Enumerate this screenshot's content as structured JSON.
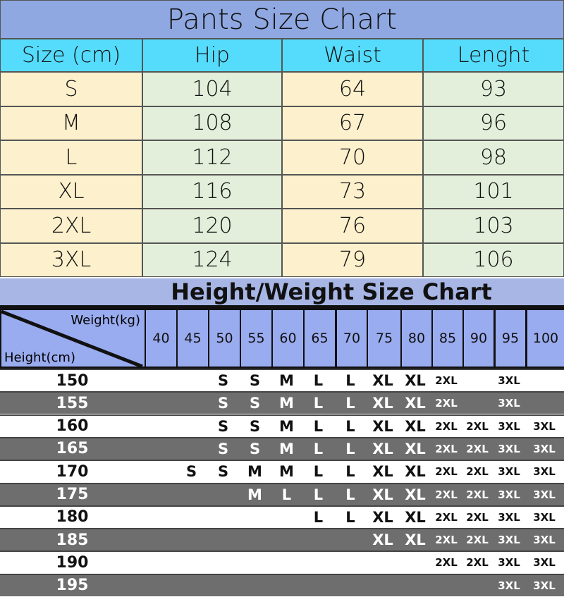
{
  "pants": {
    "title": "Pants Size Chart",
    "headers": [
      "Size  (cm)",
      "Hip",
      "Waist",
      "Lenght"
    ],
    "rows": [
      [
        "S",
        "104",
        "64",
        "93"
      ],
      [
        "M",
        "108",
        "67",
        "96"
      ],
      [
        "L",
        "112",
        "70",
        "98"
      ],
      [
        "XL",
        "116",
        "73",
        "101"
      ],
      [
        "2XL",
        "120",
        "76",
        "103"
      ],
      [
        "3XL",
        "124",
        "79",
        "106"
      ]
    ]
  },
  "height_weight": {
    "title": "Height/Weight Size Chart",
    "weight_label": "Weight(kg)",
    "height_label": "Height(cm)",
    "weights": [
      "40",
      "45",
      "50",
      "55",
      "60",
      "65",
      "70",
      "75",
      "80",
      "85",
      "90",
      "95",
      "100"
    ],
    "rows": [
      {
        "height": "150",
        "sizes": [
          "",
          "",
          "S",
          "S",
          "M",
          "L",
          "L",
          "XL",
          "XL",
          "2XL",
          "",
          "3XL",
          ""
        ]
      },
      {
        "height": "155",
        "sizes": [
          "",
          "",
          "S",
          "S",
          "M",
          "L",
          "L",
          "XL",
          "XL",
          "2XL",
          "",
          "3XL",
          ""
        ]
      },
      {
        "height": "160",
        "sizes": [
          "",
          "",
          "S",
          "S",
          "M",
          "L",
          "L",
          "XL",
          "XL",
          "2XL",
          "2XL",
          "3XL",
          "3XL"
        ]
      },
      {
        "height": "165",
        "sizes": [
          "",
          "",
          "S",
          "S",
          "M",
          "L",
          "L",
          "XL",
          "XL",
          "2XL",
          "2XL",
          "3XL",
          "3XL"
        ]
      },
      {
        "height": "170",
        "sizes": [
          "",
          "S",
          "S",
          "M",
          "M",
          "L",
          "L",
          "XL",
          "XL",
          "2XL",
          "2XL",
          "3XL",
          "3XL"
        ]
      },
      {
        "height": "175",
        "sizes": [
          "",
          "",
          "",
          "M",
          "L",
          "L",
          "L",
          "XL",
          "XL",
          "2XL",
          "2XL",
          "3XL",
          "3XL"
        ]
      },
      {
        "height": "180",
        "sizes": [
          "",
          "",
          "",
          "",
          "",
          "L",
          "L",
          "XL",
          "XL",
          "2XL",
          "2XL",
          "3XL",
          "3XL"
        ]
      },
      {
        "height": "185",
        "sizes": [
          "",
          "",
          "",
          "",
          "",
          "",
          "",
          "XL",
          "XL",
          "2XL",
          "2XL",
          "3XL",
          "3XL"
        ]
      },
      {
        "height": "190",
        "sizes": [
          "",
          "",
          "",
          "",
          "",
          "",
          "",
          "",
          "",
          "2XL",
          "2XL",
          "3XL",
          "3XL"
        ]
      },
      {
        "height": "195",
        "sizes": [
          "",
          "",
          "",
          "",
          "",
          "",
          "",
          "",
          "",
          "",
          "",
          "3XL",
          "3XL"
        ]
      }
    ]
  },
  "colors": {
    "title_bg": "#8fa8e2",
    "header_bg": "#55dcfd",
    "size_col": "#fdf0cc",
    "value_col": "#e3efda",
    "weight_header": "#9aacf0",
    "dark_row": "#6e6e6e"
  }
}
